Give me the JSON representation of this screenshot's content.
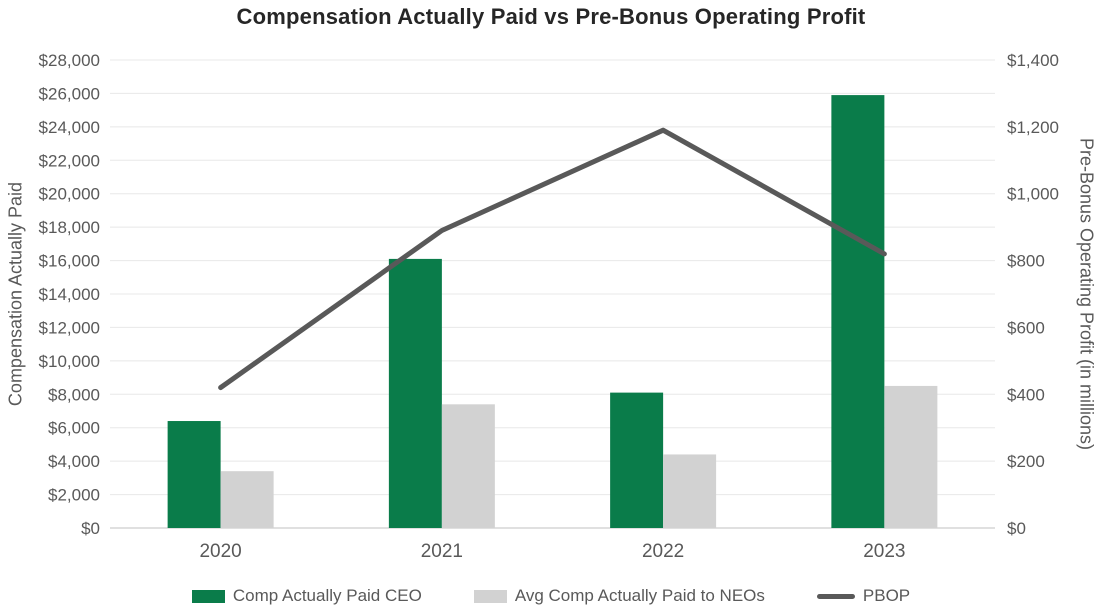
{
  "chart_data": {
    "type": "combo",
    "title": "Compensation Actually Paid vs Pre-Bonus Operating Profit",
    "categories": [
      "2020",
      "2021",
      "2022",
      "2023"
    ],
    "series": [
      {
        "name": "Comp Actually Paid CEO",
        "type": "bar",
        "axis": "left",
        "color": "#0A7C4A",
        "values": [
          6400,
          16100,
          8100,
          25900
        ]
      },
      {
        "name": "Avg Comp Actually Paid to NEOs",
        "type": "bar",
        "axis": "left",
        "color": "#D2D2D2",
        "values": [
          3400,
          7400,
          4400,
          8500
        ]
      },
      {
        "name": "PBOP",
        "type": "line",
        "axis": "right",
        "color": "#595959",
        "values": [
          420,
          890,
          1190,
          820
        ]
      }
    ],
    "left_axis": {
      "label": "Compensation Actually Paid",
      "min": 0,
      "max": 28000,
      "step": 2000,
      "tick_prefix": "$"
    },
    "right_axis": {
      "label": "Pre-Bonus Operating Profit (in millions)",
      "min": 0,
      "max": 1400,
      "step": 200,
      "tick_prefix": "$"
    },
    "grid": true,
    "legend_position": "bottom",
    "colors": {
      "title_text": "#262626",
      "axis_text": "#595959",
      "gridline": "#E8E8E8",
      "baseline": "#D6D6D6"
    }
  }
}
